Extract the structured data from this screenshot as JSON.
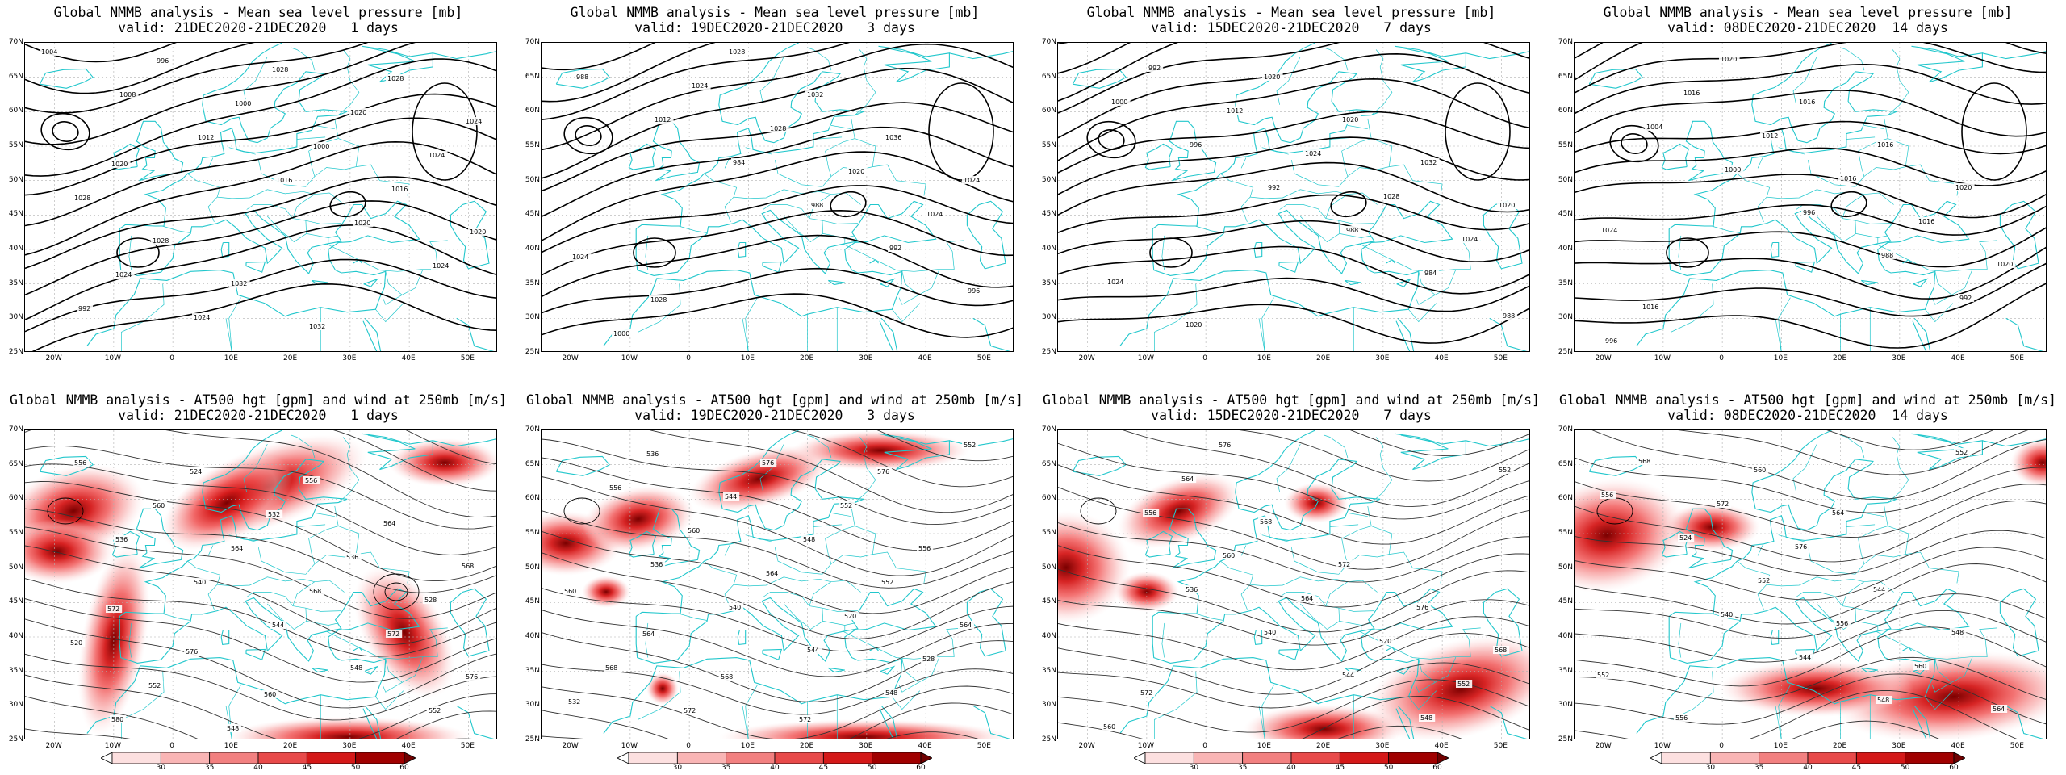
{
  "panels": [
    {
      "title": "Global NMMB analysis - Mean sea level pressure [mb]",
      "valid": "valid: 21DEC2020-21DEC2020   1 days",
      "type": "mslp",
      "labels": [
        "1004",
        "1008",
        "1012",
        "1016",
        "1020",
        "1024",
        "992",
        "996",
        "1000",
        "1000",
        "1016",
        "1020",
        "1024",
        "1024",
        "1028",
        "1020",
        "1024",
        "1028",
        "1028",
        "1032",
        "1032",
        "1028",
        "1024",
        "1020"
      ]
    },
    {
      "title": "Global NMMB analysis - Mean sea level pressure [mb]",
      "valid": "valid: 19DEC2020-21DEC2020   3 days",
      "type": "mslp",
      "labels": [
        "988",
        "1012",
        "984",
        "988",
        "992",
        "996",
        "1000",
        "1024",
        "1028",
        "1020",
        "1024",
        "1024",
        "1028",
        "1028",
        "1032",
        "1036",
        "1024"
      ]
    },
    {
      "title": "Global NMMB analysis - Mean sea level pressure [mb]",
      "valid": "valid: 15DEC2020-21DEC2020   7 days",
      "type": "mslp",
      "labels": [
        "1000",
        "996",
        "992",
        "988",
        "984",
        "988",
        "992",
        "1012",
        "1024",
        "1028",
        "1024",
        "1024",
        "1020",
        "1020",
        "1020",
        "1032",
        "1020"
      ]
    },
    {
      "title": "Global NMMB analysis - Mean sea level pressure [mb]",
      "valid": "valid: 08DEC2020-21DEC2020  14 days",
      "type": "mslp",
      "labels": [
        "1004",
        "1000",
        "996",
        "988",
        "992",
        "996",
        "1016",
        "1012",
        "1016",
        "1016",
        "1020",
        "1016",
        "1020",
        "1016",
        "1016",
        "1020",
        "1024"
      ]
    },
    {
      "title": "Global NMMB analysis - AT500 hgt [gpm] and wind at 250mb [m/s]",
      "valid": "valid: 21DEC2020-21DEC2020   1 days",
      "type": "z500",
      "labels": [
        "536",
        "540",
        "544",
        "548",
        "552",
        "556",
        "560",
        "564",
        "568",
        "572",
        "576",
        "580",
        "524",
        "532",
        "536",
        "528",
        "520",
        "552",
        "548",
        "556",
        "564",
        "568",
        "572",
        "576",
        "560"
      ]
    },
    {
      "title": "Global NMMB analysis - AT500 hgt [gpm] and wind at 250mb [m/s]",
      "valid": "valid: 19DEC2020-21DEC2020   3 days",
      "type": "z500",
      "labels": [
        "536",
        "540",
        "544",
        "548",
        "552",
        "556",
        "560",
        "564",
        "520",
        "528",
        "532",
        "536",
        "544",
        "548",
        "552",
        "564",
        "568",
        "572",
        "576",
        "552",
        "556",
        "560",
        "564",
        "568",
        "572",
        "576"
      ]
    },
    {
      "title": "Global NMMB analysis - AT500 hgt [gpm] and wind at 250mb [m/s]",
      "valid": "valid: 15DEC2020-21DEC2020   7 days",
      "type": "z500",
      "labels": [
        "536",
        "540",
        "544",
        "548",
        "552",
        "556",
        "560",
        "564",
        "520",
        "552",
        "560",
        "564",
        "568",
        "572",
        "576",
        "568",
        "572",
        "576"
      ]
    },
    {
      "title": "Global NMMB analysis - AT500 hgt [gpm] and wind at 250mb [m/s]",
      "valid": "valid: 08DEC2020-21DEC2020  14 days",
      "type": "z500",
      "labels": [
        "540",
        "544",
        "548",
        "552",
        "556",
        "524",
        "552",
        "556",
        "560",
        "564",
        "568",
        "572",
        "576",
        "544",
        "548",
        "552",
        "556",
        "560",
        "564"
      ]
    }
  ],
  "lat_ticks": [
    "70N",
    "65N",
    "60N",
    "55N",
    "50N",
    "45N",
    "40N",
    "35N",
    "30N",
    "25N"
  ],
  "lon_ticks": [
    "20W",
    "10W",
    "0",
    "10E",
    "20E",
    "30E",
    "40E",
    "50E"
  ],
  "colorbar": {
    "ticks": [
      "30",
      "35",
      "40",
      "45",
      "50",
      "60"
    ],
    "colors": [
      "#ffffff",
      "#fde0e0",
      "#f9b5b5",
      "#f28080",
      "#e84a4a",
      "#d41818",
      "#a00000",
      "#700000"
    ]
  },
  "colors": {
    "coast": "#22c7cc",
    "contour": "#000000",
    "grid": "#b0b0b0"
  }
}
